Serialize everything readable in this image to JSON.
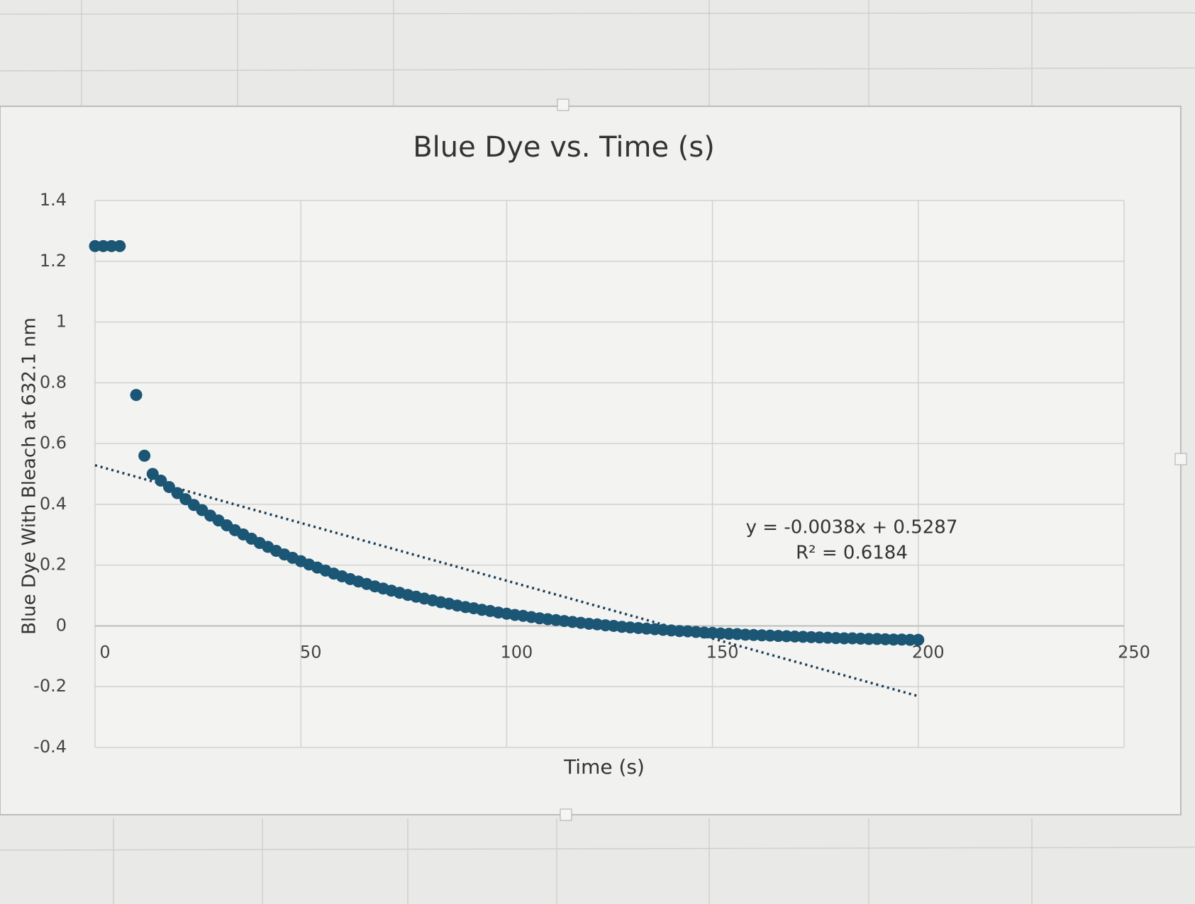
{
  "chart_data": {
    "type": "scatter",
    "title": "Blue Dye vs. Time (s)",
    "x_label": "Time (s)",
    "y_label": "Blue Dye With Bleach at 632.1 nm",
    "x": [
      0,
      2,
      4,
      6,
      10,
      12,
      14,
      16,
      18,
      20,
      22,
      24,
      26,
      28,
      30,
      32,
      34,
      36,
      38,
      40,
      42,
      44,
      46,
      48,
      50,
      52,
      54,
      56,
      58,
      60,
      62,
      64,
      66,
      68,
      70,
      72,
      74,
      76,
      78,
      80,
      82,
      84,
      86,
      88,
      90,
      92,
      94,
      96,
      98,
      100,
      102,
      104,
      106,
      108,
      110,
      112,
      114,
      116,
      118,
      120,
      122,
      124,
      126,
      128,
      130,
      132,
      134,
      136,
      138,
      140,
      142,
      144,
      146,
      148,
      150,
      152,
      154,
      156,
      158,
      160,
      162,
      164,
      166,
      168,
      170,
      172,
      174,
      176,
      178,
      180,
      182,
      184,
      186,
      188,
      190,
      192,
      194,
      196,
      198,
      200
    ],
    "series": [
      {
        "color": "#1b5675",
        "values": [
          1.25,
          1.25,
          1.25,
          1.25,
          0.76,
          0.56,
          0.5,
          0.478,
          0.457,
          0.437,
          0.417,
          0.398,
          0.381,
          0.363,
          0.347,
          0.331,
          0.315,
          0.301,
          0.287,
          0.273,
          0.26,
          0.247,
          0.235,
          0.224,
          0.213,
          0.202,
          0.192,
          0.182,
          0.172,
          0.163,
          0.154,
          0.146,
          0.138,
          0.13,
          0.123,
          0.116,
          0.109,
          0.102,
          0.096,
          0.09,
          0.084,
          0.078,
          0.073,
          0.067,
          0.062,
          0.058,
          0.053,
          0.049,
          0.044,
          0.04,
          0.036,
          0.033,
          0.029,
          0.025,
          0.022,
          0.019,
          0.016,
          0.013,
          0.01,
          0.007,
          0.005,
          0.002,
          0.0,
          -0.003,
          -0.005,
          -0.007,
          -0.009,
          -0.011,
          -0.013,
          -0.015,
          -0.017,
          -0.018,
          -0.02,
          -0.022,
          -0.023,
          -0.025,
          -0.026,
          -0.027,
          -0.029,
          -0.03,
          -0.031,
          -0.032,
          -0.033,
          -0.034,
          -0.035,
          -0.036,
          -0.037,
          -0.038,
          -0.039,
          -0.04,
          -0.041,
          -0.041,
          -0.042,
          -0.043,
          -0.043,
          -0.044,
          -0.045,
          -0.045,
          -0.046,
          -0.046
        ]
      }
    ],
    "trendline": {
      "slope": -0.0038,
      "intercept": 0.5287,
      "equation": "y = -0.0038x + 0.5287",
      "r_squared": "R² = 0.6184"
    },
    "xlim": [
      0,
      250
    ],
    "xticks": [
      0,
      50,
      100,
      150,
      200,
      250
    ],
    "ylim": [
      -0.4,
      1.4
    ],
    "yticks": [
      -0.4,
      -0.2,
      0,
      0.2,
      0.4,
      0.6,
      0.8,
      1,
      1.2,
      1.4
    ],
    "grid": true
  }
}
